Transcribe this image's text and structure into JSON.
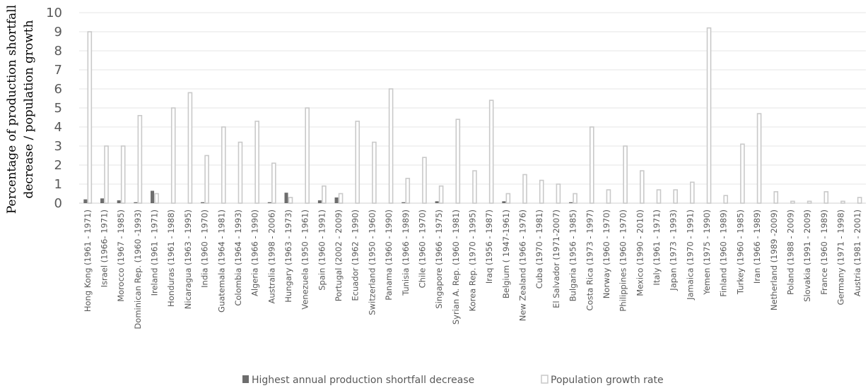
{
  "chart_data": {
    "type": "bar",
    "ylabel_lines": [
      "Percentage of production shortfall",
      "decrease / population growth"
    ],
    "xlabel": "",
    "ylim": [
      0,
      10
    ],
    "yticks": [
      0,
      1,
      2,
      3,
      4,
      5,
      6,
      7,
      8,
      9,
      10
    ],
    "grid": true,
    "legend_position": "bottom",
    "categories": [
      "Hong Kong (1961 - 1971)",
      "Israel (1966- 1971)",
      "Morocco (1967 - 1985)",
      "Dominican Rep. (1960 -1993)",
      "Ireland (1961 - 1971)",
      "Honduras (1961 - 1988)",
      "Nicaragua (1963 - 1995)",
      "India (1960 - 1970)",
      "Guatemala (1964 - 1981)",
      "Colombia (1964 - 1993)",
      "Algeria (1966 - 1990)",
      "Australia (1998 - 2006)",
      "Hungary (1963 - 1973)",
      "Venezuela (1950 - 1961)",
      "Spain (1960 - 1991)",
      "Portugal (2002 - 2009)",
      "Ecuador (1962 - 1990)",
      "Switzerland (1950 - 1960)",
      "Panama (1960 - 1990)",
      "Tunisia (1966 - 1989)",
      "Chile (1960 - 1970)",
      "Singapore (1966 - 1975)",
      "Syrian A. Rep. (1960 - 1981)",
      "Korea Rep. (1970 - 1995)",
      "Iraq (1956 - 1987)",
      "Belgium ( 1947-1961)",
      "New Zealand (1966 - 1976)",
      "Cuba (1970 - 1981)",
      "El Salvador (1971-2007)",
      "Bulgaria (1956 - 1985)",
      "Costa Rica (1973 - 1997)",
      "Norway (1960 - 1970)",
      "Philippines (1960 - 1970)",
      "Mexico (1990 - 2010)",
      "Italy (1961 - 1971)",
      "Japan (1973 - 1993)",
      "Jamaica (1970 - 1991)",
      "Yemen (1975 - 1990)",
      "Finland (1960 - 1989)",
      "Turkey (1960 - 1985)",
      "Iran (1966 - 1989)",
      "Netherland (1989 -2009)",
      "Poland (1988 - 2009)",
      "Slovakia (1991 - 2009)",
      "France (1960 - 1989)",
      "Germany (1971 - 1998)",
      "Austria (1981 - 2001)"
    ],
    "series": [
      {
        "name": "Highest annual production shortfall decrease",
        "color": "#6d6d6d",
        "values": [
          0.2,
          0.25,
          0.15,
          0.05,
          0.65,
          0,
          0,
          0.05,
          0,
          0,
          0,
          0.05,
          0.55,
          0,
          0.15,
          0.3,
          0,
          0,
          0,
          0.05,
          0,
          0.1,
          0,
          0,
          0,
          0.1,
          0,
          0,
          0,
          0.05,
          0,
          0,
          0,
          0,
          0,
          0,
          0,
          0,
          0,
          0,
          0,
          0,
          0,
          0,
          0,
          0,
          0
        ]
      },
      {
        "name": "Population growth rate",
        "color": "#c9c9c9",
        "values": [
          9.0,
          3.0,
          3.0,
          4.6,
          0.5,
          5.0,
          5.8,
          2.5,
          4.0,
          3.2,
          4.3,
          2.1,
          0.3,
          5.0,
          0.9,
          0.5,
          4.3,
          3.2,
          6.0,
          1.3,
          2.4,
          0.9,
          4.4,
          1.7,
          5.4,
          0.5,
          1.5,
          1.2,
          1.0,
          0.5,
          4.0,
          0.7,
          3.0,
          1.7,
          0.7,
          0.7,
          1.1,
          9.2,
          0.4,
          3.1,
          4.7,
          0.6,
          0.1,
          0.1,
          0.6,
          0.1,
          0.3
        ]
      }
    ]
  }
}
